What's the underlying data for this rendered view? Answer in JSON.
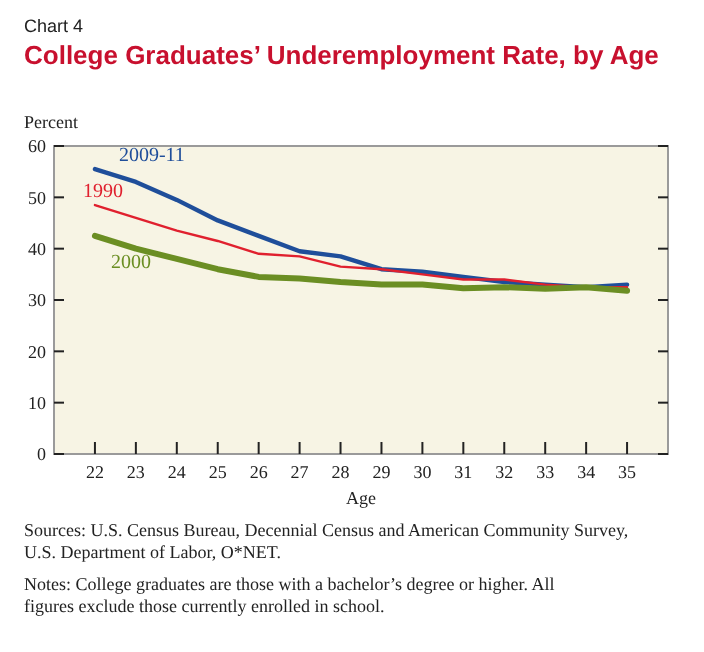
{
  "chart_data": {
    "type": "line",
    "subtitle": "Chart 4",
    "title": "College Graduates’ Underemployment Rate, by Age",
    "ylabel": "Percent",
    "xlabel": "Age",
    "categories": [
      "22",
      "23",
      "24",
      "25",
      "26",
      "27",
      "28",
      "29",
      "30",
      "31",
      "32",
      "33",
      "34",
      "35"
    ],
    "ylim": [
      0,
      60
    ],
    "yticks": [
      0,
      10,
      20,
      30,
      40,
      50,
      60
    ],
    "grid": false,
    "series": [
      {
        "name": "2009-11",
        "color": "#1f4e9a",
        "values": [
          55.5,
          53,
          49.5,
          45.5,
          42.5,
          39.5,
          38.5,
          36,
          35.5,
          34.5,
          33.5,
          33,
          32.5,
          33
        ]
      },
      {
        "name": "1990",
        "color": "#e0202e",
        "values": [
          48.5,
          46,
          43.5,
          41.5,
          39,
          38.5,
          36.5,
          36,
          35,
          34,
          34,
          33,
          32.5,
          32.5
        ]
      },
      {
        "name": "2000",
        "color": "#6b8e23",
        "values": [
          42.5,
          40,
          38,
          36,
          34.5,
          34.2,
          33.5,
          33,
          33,
          32.3,
          32.5,
          32.2,
          32.5,
          31.8
        ]
      }
    ],
    "annotations": [
      "Sources: U.S. Census Bureau, Decennial Census and American Community Survey, U.S. Department of Labor, O*NET.",
      "Notes: College graduates are those with a bachelor’s degree or higher. All figures exclude those currently enrolled in school."
    ]
  }
}
